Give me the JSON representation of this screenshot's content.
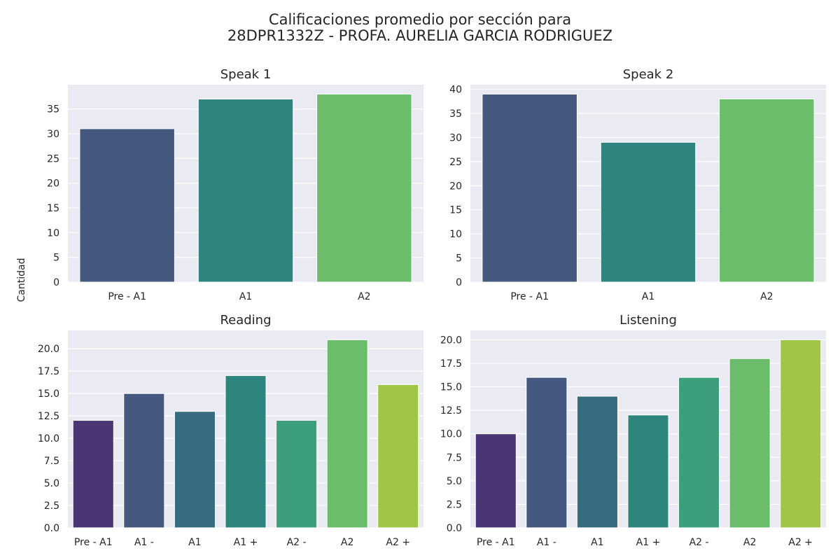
{
  "figure": {
    "title_line1": "Calificaciones promedio por sección para",
    "title_line2": "28DPR1332Z - PROFA. AURELIA GARCIA RODRIGUEZ",
    "ylabel": "Cantidad"
  },
  "chart_data": [
    {
      "type": "bar",
      "title": "Speak 1",
      "categories": [
        "Pre - A1",
        "A1",
        "A2"
      ],
      "values": [
        31,
        37,
        38
      ],
      "colors": [
        "#45587f",
        "#2e857e",
        "#6bbd6c"
      ],
      "ylim": [
        0,
        39.9
      ],
      "yticks": [
        "0",
        "5",
        "10",
        "15",
        "20",
        "25",
        "30",
        "35"
      ],
      "grid": true
    },
    {
      "type": "bar",
      "title": "Speak 2",
      "categories": [
        "Pre - A1",
        "A1",
        "A2"
      ],
      "values": [
        39,
        29,
        38
      ],
      "colors": [
        "#45587f",
        "#2e857e",
        "#6bbd6c"
      ],
      "ylim": [
        0,
        40.95
      ],
      "yticks": [
        "0",
        "5",
        "10",
        "15",
        "20",
        "25",
        "30",
        "35",
        "40"
      ],
      "grid": true
    },
    {
      "type": "bar",
      "title": "Reading",
      "categories": [
        "Pre - A1",
        "A1 -",
        "A1",
        "A1 +",
        "A2 -",
        "A2",
        "A2 +"
      ],
      "values": [
        12,
        15,
        13,
        17,
        12,
        21,
        16
      ],
      "colors": [
        "#4b3573",
        "#45587f",
        "#376c80",
        "#2e857e",
        "#3c9e7a",
        "#6bbd6c",
        "#a0c646"
      ],
      "ylim": [
        0,
        22.05
      ],
      "yticks": [
        "0.0",
        "2.5",
        "5.0",
        "7.5",
        "10.0",
        "12.5",
        "15.0",
        "17.5",
        "20.0"
      ],
      "grid": true
    },
    {
      "type": "bar",
      "title": "Listening",
      "categories": [
        "Pre - A1",
        "A1 -",
        "A1",
        "A1 +",
        "A2 -",
        "A2",
        "A2 +"
      ],
      "values": [
        10,
        16,
        14,
        12,
        16,
        18,
        20
      ],
      "colors": [
        "#4b3573",
        "#45587f",
        "#376c80",
        "#2e857e",
        "#3c9e7a",
        "#6bbd6c",
        "#a0c646"
      ],
      "ylim": [
        0,
        21
      ],
      "yticks": [
        "0.0",
        "2.5",
        "5.0",
        "7.5",
        "10.0",
        "12.5",
        "15.0",
        "17.5",
        "20.0"
      ],
      "grid": true
    }
  ]
}
